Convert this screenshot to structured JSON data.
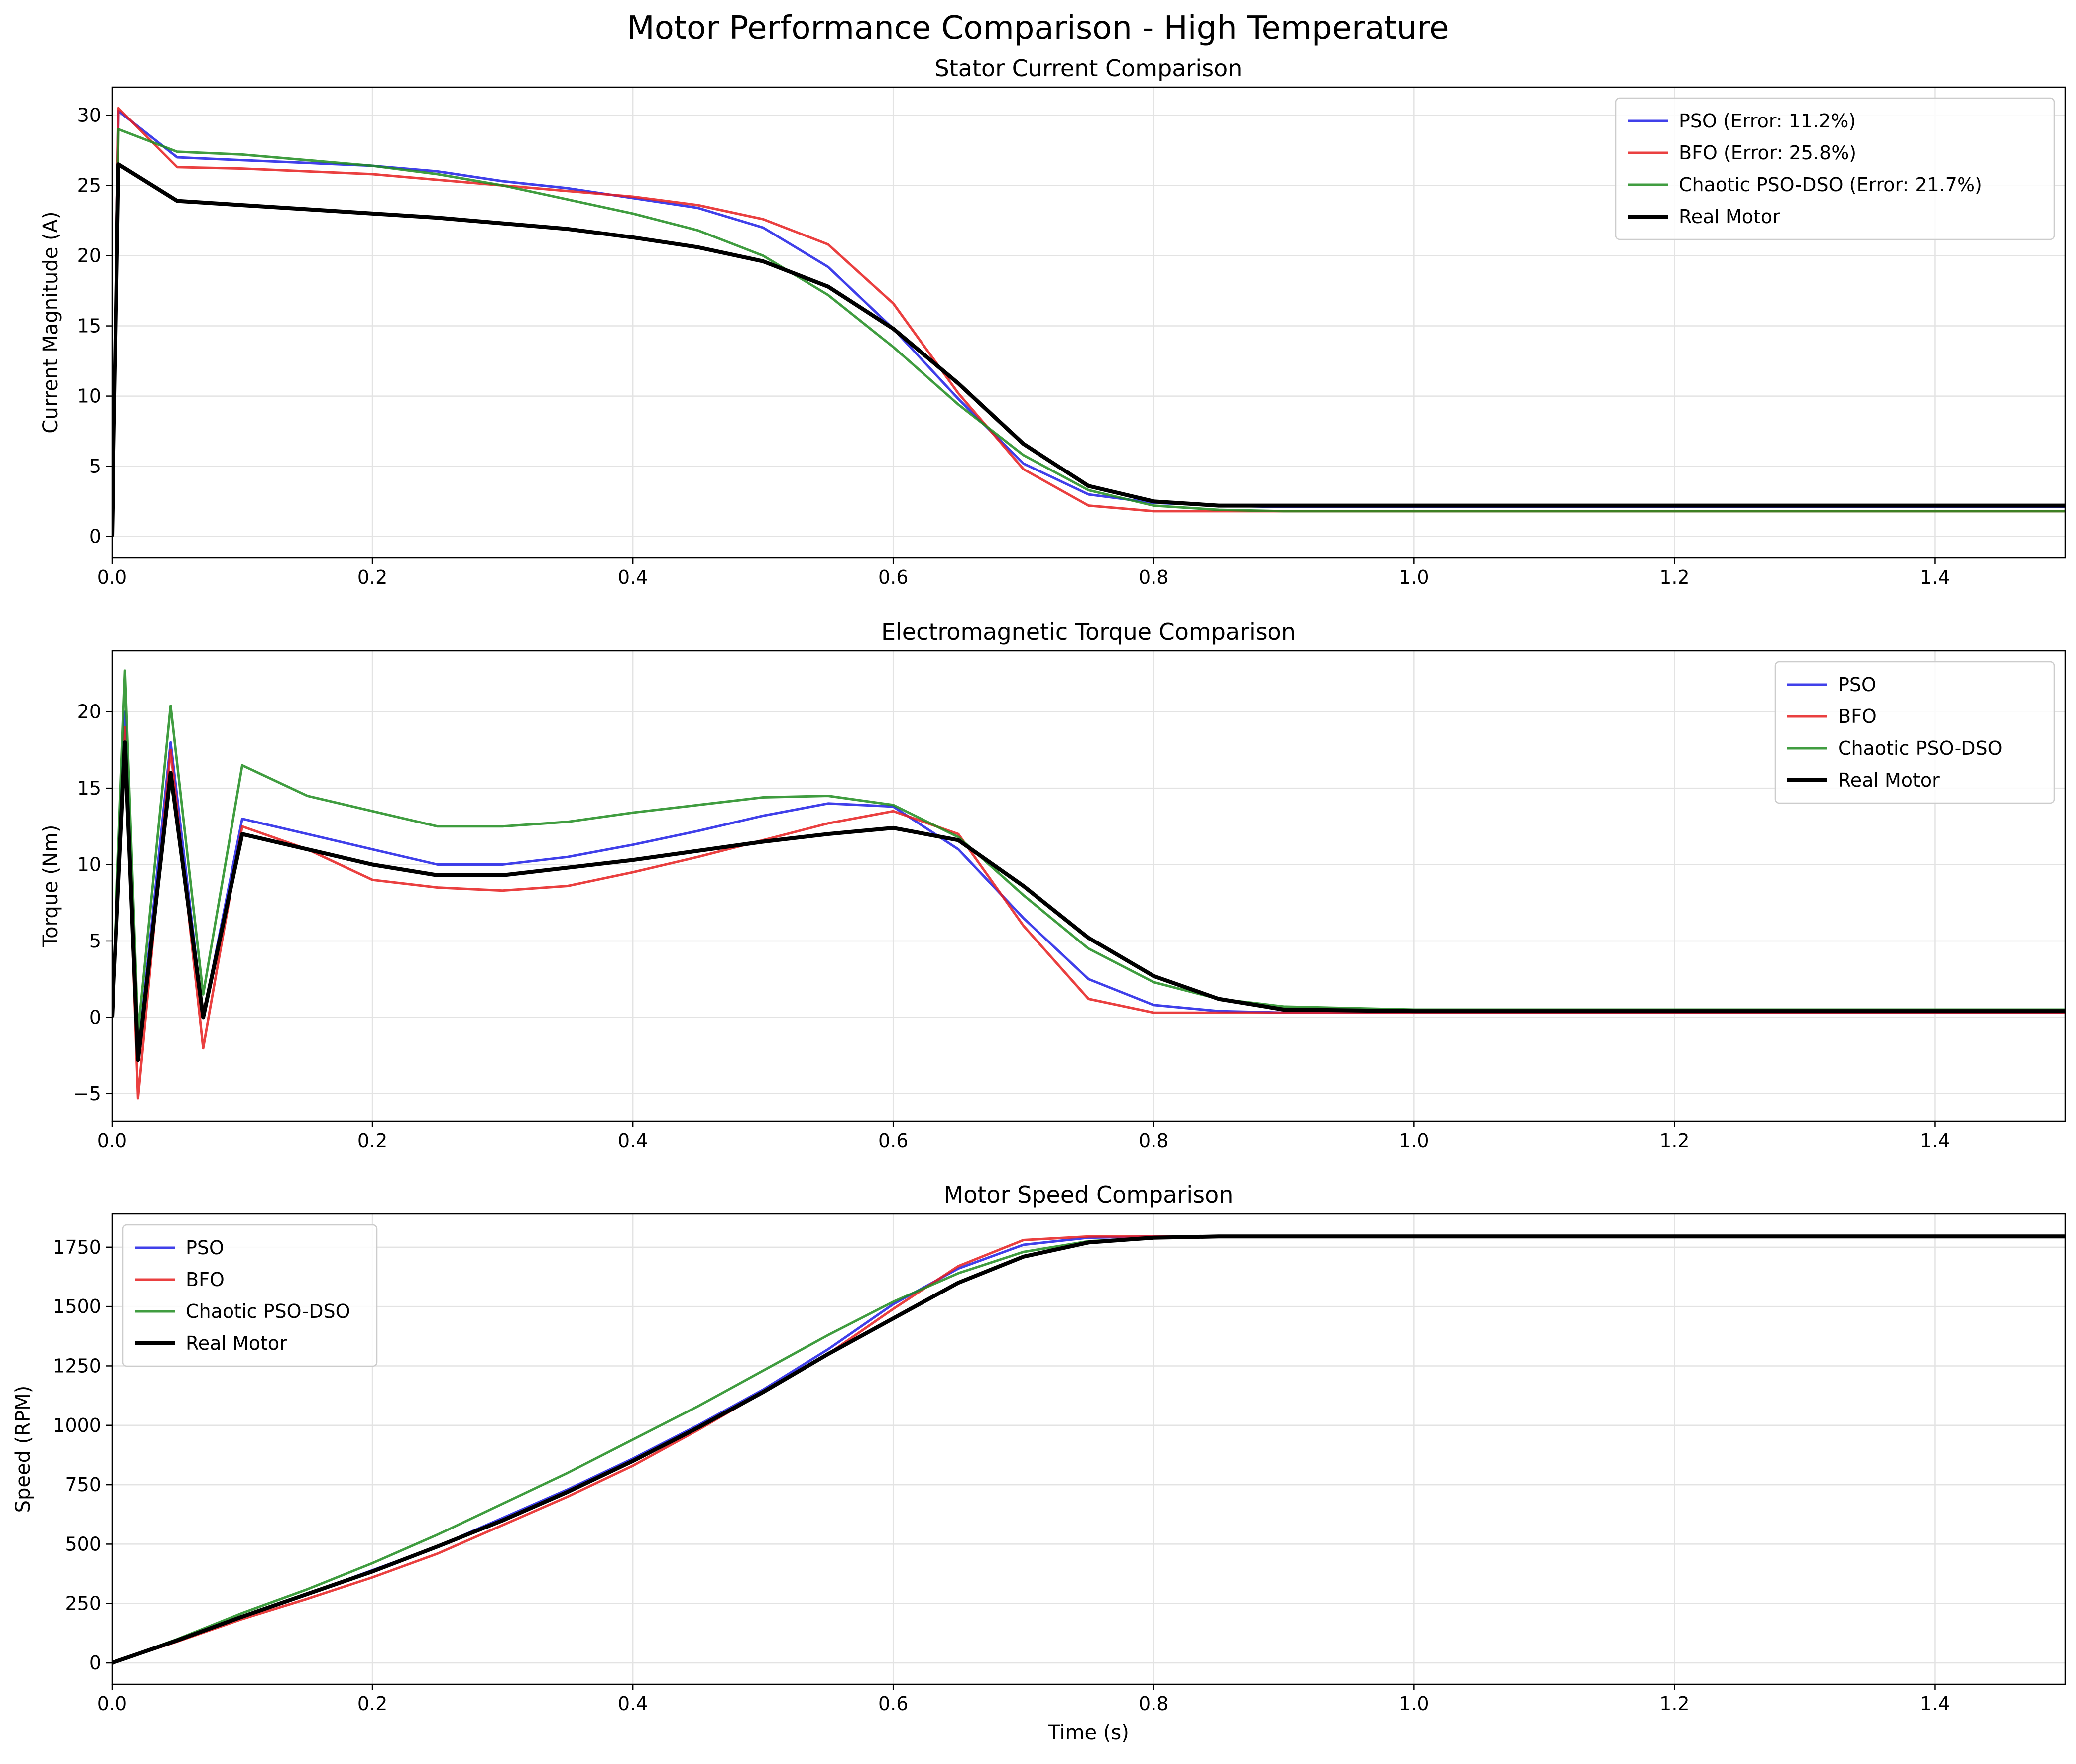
{
  "figure": {
    "suptitle": "Motor Performance Comparison - High Temperature"
  },
  "colors": {
    "PSO": "#1f1fe6",
    "BFO": "#e61f1f",
    "Chaotic PSO-DSO": "#1f8c1f",
    "Real Motor": "#000000"
  },
  "chart_data": [
    {
      "type": "line",
      "title": "Stator Current Comparison",
      "xlabel": "",
      "ylabel": "Current Magnitude (A)",
      "xlim": [
        0,
        1.5
      ],
      "ylim": [
        -1.5,
        32
      ],
      "xticks": [
        "0.0",
        "0.2",
        "0.4",
        "0.6",
        "0.8",
        "1.0",
        "1.2",
        "1.4"
      ],
      "yticks": [
        "0",
        "5",
        "10",
        "15",
        "20",
        "25",
        "30"
      ],
      "grid": true,
      "legend_position": "top-right",
      "legend": [
        "PSO (Error: 11.2%)",
        "BFO (Error: 25.8%)",
        "Chaotic PSO-DSO (Error: 21.7%)",
        "Real Motor"
      ],
      "x": [
        0,
        0.005,
        0.05,
        0.1,
        0.15,
        0.2,
        0.25,
        0.3,
        0.35,
        0.4,
        0.45,
        0.5,
        0.55,
        0.6,
        0.65,
        0.7,
        0.75,
        0.8,
        0.85,
        0.9,
        1.0,
        1.2,
        1.5
      ],
      "series": [
        {
          "name": "PSO (Error: 11.2%)",
          "values": [
            0,
            30.3,
            27.0,
            26.8,
            26.6,
            26.4,
            26.0,
            25.3,
            24.8,
            24.1,
            23.4,
            22.0,
            19.2,
            14.8,
            9.8,
            5.2,
            3.0,
            2.4,
            2.2,
            2.1,
            2.1,
            2.1,
            2.1
          ]
        },
        {
          "name": "BFO (Error: 25.8%)",
          "values": [
            0,
            30.5,
            26.3,
            26.2,
            26.0,
            25.8,
            25.4,
            25.0,
            24.6,
            24.2,
            23.6,
            22.6,
            20.8,
            16.6,
            10.2,
            4.8,
            2.2,
            1.8,
            1.8,
            1.8,
            1.8,
            1.8,
            1.8
          ]
        },
        {
          "name": "Chaotic PSO-DSO (Error: 21.7%)",
          "values": [
            0,
            29.0,
            27.4,
            27.2,
            26.8,
            26.4,
            25.8,
            25.0,
            24.0,
            23.0,
            21.8,
            20.0,
            17.2,
            13.5,
            9.4,
            5.8,
            3.3,
            2.2,
            1.9,
            1.8,
            1.8,
            1.8,
            1.8
          ]
        },
        {
          "name": "Real Motor",
          "values": [
            0,
            26.5,
            23.9,
            23.6,
            23.3,
            23.0,
            22.7,
            22.3,
            21.9,
            21.3,
            20.6,
            19.6,
            17.8,
            14.8,
            10.9,
            6.6,
            3.6,
            2.5,
            2.2,
            2.2,
            2.2,
            2.2,
            2.2
          ]
        }
      ]
    },
    {
      "type": "line",
      "title": "Electromagnetic Torque Comparison",
      "xlabel": "",
      "ylabel": "Torque (Nm)",
      "xlim": [
        0,
        1.5
      ],
      "ylim": [
        -6.8,
        24
      ],
      "xticks": [
        "0.0",
        "0.2",
        "0.4",
        "0.6",
        "0.8",
        "1.0",
        "1.2",
        "1.4"
      ],
      "yticks": [
        "−5",
        "0",
        "5",
        "10",
        "15",
        "20"
      ],
      "grid": true,
      "legend_position": "top-right",
      "legend": [
        "PSO",
        "BFO",
        "Chaotic PSO-DSO",
        "Real Motor"
      ],
      "x": [
        0,
        0.01,
        0.02,
        0.045,
        0.07,
        0.1,
        0.15,
        0.2,
        0.25,
        0.3,
        0.35,
        0.4,
        0.45,
        0.5,
        0.55,
        0.6,
        0.65,
        0.7,
        0.75,
        0.8,
        0.85,
        0.9,
        1.0,
        1.2,
        1.5
      ],
      "series": [
        {
          "name": "PSO",
          "values": [
            0,
            20.0,
            -2.5,
            18.0,
            0.0,
            13.0,
            12.0,
            11.0,
            10.0,
            10.0,
            10.5,
            11.3,
            12.2,
            13.2,
            14.0,
            13.8,
            11.0,
            6.5,
            2.5,
            0.8,
            0.4,
            0.3,
            0.3,
            0.3,
            0.3
          ]
        },
        {
          "name": "BFO",
          "values": [
            0,
            19.0,
            -5.3,
            17.5,
            -2.0,
            12.5,
            11.0,
            9.0,
            8.5,
            8.3,
            8.6,
            9.5,
            10.5,
            11.6,
            12.7,
            13.5,
            12.0,
            6.0,
            1.2,
            0.3,
            0.3,
            0.3,
            0.3,
            0.3,
            0.3
          ]
        },
        {
          "name": "Chaotic PSO-DSO",
          "values": [
            0,
            22.7,
            -1.0,
            20.4,
            1.5,
            16.5,
            14.5,
            13.5,
            12.5,
            12.5,
            12.8,
            13.4,
            13.9,
            14.4,
            14.5,
            13.9,
            11.8,
            8.0,
            4.5,
            2.3,
            1.2,
            0.7,
            0.5,
            0.5,
            0.5
          ]
        },
        {
          "name": "Real Motor",
          "values": [
            0,
            18.0,
            -2.8,
            16.0,
            0.0,
            12.0,
            11.0,
            10.0,
            9.3,
            9.3,
            9.8,
            10.3,
            10.9,
            11.5,
            12.0,
            12.4,
            11.6,
            8.6,
            5.2,
            2.7,
            1.2,
            0.5,
            0.4,
            0.4,
            0.4
          ]
        }
      ]
    },
    {
      "type": "line",
      "title": "Motor Speed Comparison",
      "xlabel": "Time (s)",
      "ylabel": "Speed (RPM)",
      "xlim": [
        0,
        1.5
      ],
      "ylim": [
        -90,
        1890
      ],
      "xticks": [
        "0.0",
        "0.2",
        "0.4",
        "0.6",
        "0.8",
        "1.0",
        "1.2",
        "1.4"
      ],
      "yticks": [
        "0",
        "250",
        "500",
        "750",
        "1000",
        "1250",
        "1500",
        "1750"
      ],
      "grid": true,
      "legend_position": "top-left",
      "legend": [
        "PSO",
        "BFO",
        "Chaotic PSO-DSO",
        "Real Motor"
      ],
      "x": [
        0,
        0.05,
        0.1,
        0.15,
        0.2,
        0.25,
        0.3,
        0.35,
        0.4,
        0.45,
        0.5,
        0.55,
        0.6,
        0.65,
        0.7,
        0.75,
        0.8,
        0.85,
        0.9,
        1.0,
        1.2,
        1.5
      ],
      "series": [
        {
          "name": "PSO",
          "values": [
            0,
            95,
            195,
            290,
            390,
            490,
            610,
            730,
            860,
            1000,
            1150,
            1320,
            1510,
            1660,
            1760,
            1790,
            1795,
            1795,
            1795,
            1795,
            1795,
            1795
          ]
        },
        {
          "name": "BFO",
          "values": [
            0,
            90,
            185,
            270,
            360,
            460,
            580,
            700,
            830,
            980,
            1140,
            1300,
            1490,
            1670,
            1780,
            1795,
            1795,
            1795,
            1795,
            1795,
            1795,
            1795
          ]
        },
        {
          "name": "Chaotic PSO-DSO",
          "values": [
            0,
            100,
            210,
            310,
            420,
            540,
            670,
            800,
            940,
            1080,
            1230,
            1380,
            1520,
            1640,
            1730,
            1775,
            1790,
            1795,
            1795,
            1795,
            1795,
            1795
          ]
        },
        {
          "name": "Real Motor",
          "values": [
            0,
            95,
            195,
            290,
            385,
            490,
            600,
            720,
            850,
            990,
            1140,
            1300,
            1450,
            1600,
            1710,
            1770,
            1790,
            1795,
            1795,
            1795,
            1795,
            1795
          ]
        }
      ]
    }
  ]
}
